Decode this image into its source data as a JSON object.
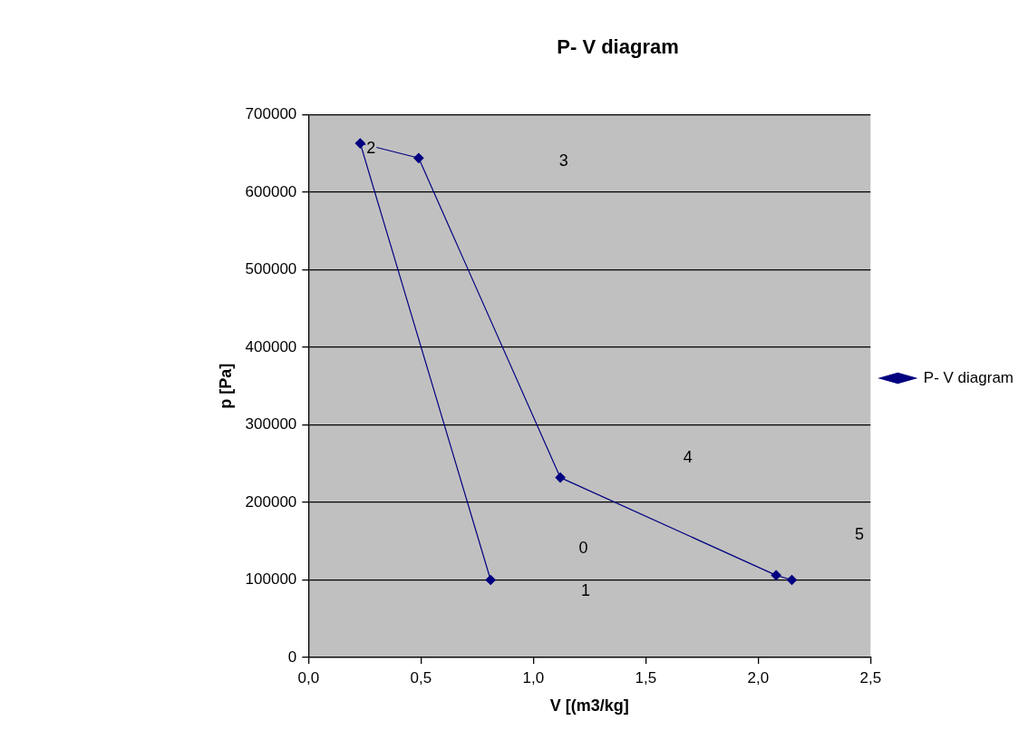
{
  "chart_data": {
    "type": "line",
    "title": "P- V diagram",
    "xlabel": "V [(m3/kg]",
    "ylabel": "p [Pa]",
    "series": [
      {
        "name": "P- V diagram",
        "color": "#000080",
        "x": [
          0.81,
          0.23,
          0.49,
          1.12,
          2.08,
          2.15
        ],
        "values": [
          100000,
          663000,
          644000,
          232000,
          106000,
          100000
        ]
      }
    ],
    "xlim": [
      0,
      2.5
    ],
    "xticks": [
      {
        "value": 0,
        "label": "0,0"
      },
      {
        "value": 0.5,
        "label": "0,5"
      },
      {
        "value": 1,
        "label": "1,0"
      },
      {
        "value": 1.5,
        "label": "1,5"
      },
      {
        "value": 2,
        "label": "2,0"
      },
      {
        "value": 2.5,
        "label": "2,5"
      }
    ],
    "ylim": [
      0,
      700000
    ],
    "yticks": [
      0,
      100000,
      200000,
      300000,
      400000,
      500000,
      600000,
      700000
    ],
    "grid": "y",
    "legend": "right",
    "marker": "diamond",
    "line_style": "solid",
    "annotations": [
      "0",
      "1",
      {
        "text": "2",
        "x": 0.23,
        "y": 663000
      },
      "3",
      "4",
      "5"
    ]
  }
}
